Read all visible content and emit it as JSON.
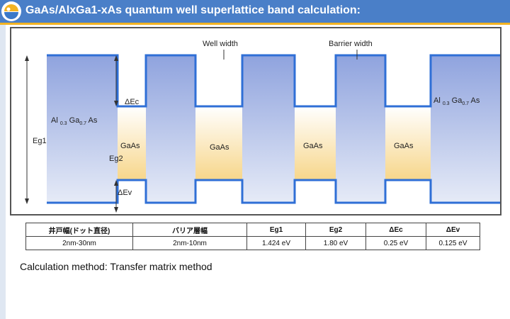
{
  "header": {
    "title": "GaAs/AlxGa1-xAs quantum well superlattice band calculation:",
    "logo_icon": "sun-globe-logo-icon",
    "bar_color": "#4a7fc8",
    "accent_color": "#f3b322"
  },
  "diagram": {
    "well_width_label": "Well width",
    "barrier_width_label": "Barrier width",
    "delta_ec_label": "ΔEc",
    "delta_ev_label": "ΔEv",
    "eg1_label": "Eg1",
    "eg2_label": "Eg2",
    "barrier_material_left": {
      "base": "Al",
      "sub1": "0.3",
      "mid": "Ga",
      "sub2": "0.7",
      "tail": "As"
    },
    "barrier_material_right": {
      "base": "Al",
      "sub1": "0.3",
      "mid": "Ga",
      "sub2": "0.7",
      "tail": "As"
    },
    "well_labels": [
      "GaAs",
      "GaAs",
      "GaAs",
      "GaAs"
    ],
    "line_color": "#2f6fd6",
    "barrier_fill_color": "#a7b6e4",
    "well_fill_color": "#f7d68a"
  },
  "table": {
    "headers": [
      "井戸幅(ドット直径)",
      "バリア層幅",
      "Eg1",
      "Eg2",
      "ΔEc",
      "ΔEv"
    ],
    "values": [
      "2nm-30nm",
      "2nm-10nm",
      "1.424 eV",
      "1.80 eV",
      "0.25 eV",
      "0.125 eV"
    ]
  },
  "method_text": "Calculation method: Transfer matrix method"
}
